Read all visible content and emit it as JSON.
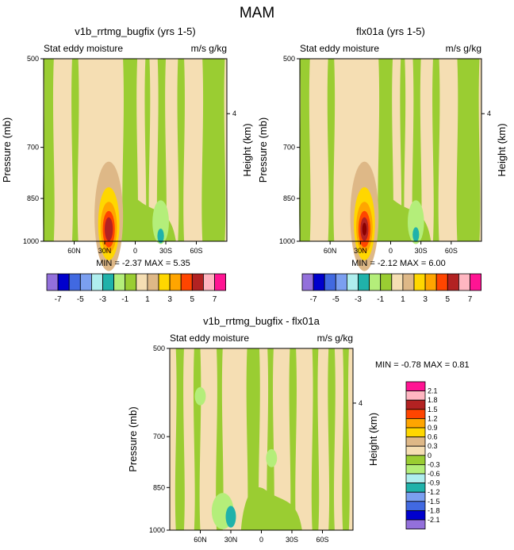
{
  "figure_title": "MAM",
  "chart_data": [
    {
      "type": "heatmap",
      "title": "v1b_rrtmg_bugfix (yrs 1-5)",
      "subtitle_left": "Stat eddy moisture",
      "subtitle_right": "m/s g/kg",
      "ylabel": "Pressure (mb)",
      "ylabel_right": "Height (km)",
      "y_ticks": [
        "500",
        "700",
        "850",
        "1000"
      ],
      "y_right_ticks": [
        "4"
      ],
      "x_ticks": [
        "60N",
        "30N",
        "0",
        "30S",
        "60S"
      ],
      "stats": "MIN = -2.37  MAX =  5.35",
      "min": -2.37,
      "max": 5.35,
      "hotspot": {
        "lat": 26,
        "pressure": 955,
        "value": 5.35
      },
      "coldspot": {
        "lat": -25,
        "pressure": 980,
        "value": -2.37
      }
    },
    {
      "type": "heatmap",
      "title": "flx01a (yrs 1-5)",
      "subtitle_left": "Stat eddy moisture",
      "subtitle_right": "m/s g/kg",
      "ylabel": "Pressure (mb)",
      "ylabel_right": "Height (km)",
      "y_ticks": [
        "500",
        "700",
        "850",
        "1000"
      ],
      "y_right_ticks": [
        "4"
      ],
      "x_ticks": [
        "60N",
        "30N",
        "0",
        "30S",
        "60S"
      ],
      "stats": "MIN = -2.12  MAX =  6.00",
      "min": -2.12,
      "max": 6.0,
      "hotspot": {
        "lat": 26,
        "pressure": 955,
        "value": 6.0
      },
      "coldspot": {
        "lat": -25,
        "pressure": 975,
        "value": -2.12
      }
    },
    {
      "type": "heatmap",
      "title": "v1b_rrtmg_bugfix - flx01a",
      "subtitle_left": "Stat eddy moisture",
      "subtitle_right": "m/s g/kg",
      "ylabel": "Pressure (mb)",
      "ylabel_right": "Height (km)",
      "y_ticks": [
        "500",
        "700",
        "850",
        "1000"
      ],
      "y_right_ticks": [
        "4"
      ],
      "x_ticks": [
        "60N",
        "30N",
        "0",
        "30S",
        "60S"
      ],
      "stats": "MIN = -0.78  MAX =  0.81",
      "min": -0.78,
      "max": 0.81,
      "coldspot": {
        "lat": 30,
        "pressure": 950,
        "value": -0.78
      }
    }
  ],
  "colorbar_top": {
    "colors": [
      "#9370db",
      "#0000cd",
      "#4169e1",
      "#7b9ff0",
      "#afeeee",
      "#20b2aa",
      "#b4ee7a",
      "#9acd32",
      "#f5deb3",
      "#deb887",
      "#ffd700",
      "#ffa500",
      "#ff4500",
      "#b22222",
      "#ffb6c1",
      "#ff1493"
    ],
    "labels": [
      "-7",
      "-5",
      "-3",
      "-1",
      "1",
      "3",
      "5",
      "7"
    ]
  },
  "colorbar_diff": {
    "colors": [
      "#ff1493",
      "#ffb6c1",
      "#b22222",
      "#ff4500",
      "#ffa500",
      "#ffd700",
      "#deb887",
      "#f5deb3",
      "#9acd32",
      "#b4ee7a",
      "#afeeee",
      "#20b2aa",
      "#7b9ff0",
      "#4169e1",
      "#0000cd",
      "#9370db"
    ],
    "labels": [
      "2.1",
      "1.8",
      "1.5",
      "1.2",
      "0.9",
      "0.6",
      "0.3",
      "0",
      "-0.3",
      "-0.6",
      "-0.9",
      "-1.2",
      "-1.5",
      "-1.8",
      "-2.1"
    ]
  },
  "field_colors": {
    "tan": "#f5deb3",
    "green": "#9acd32",
    "light_green": "#b4ee7a",
    "teal": "#20b2aa",
    "burly": "#deb887"
  }
}
